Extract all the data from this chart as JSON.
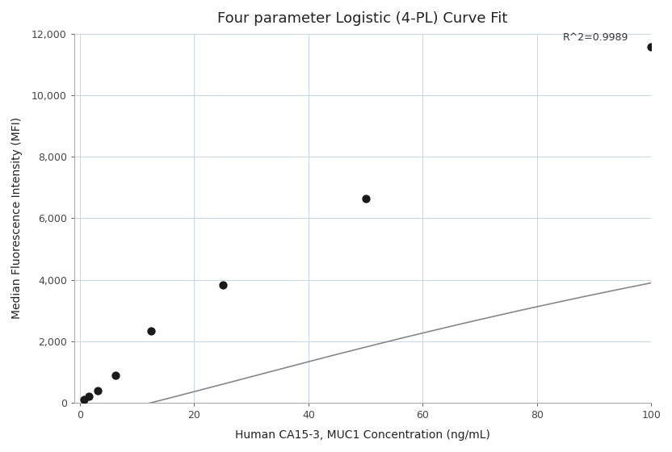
{
  "title": "Four parameter Logistic (4-PL) Curve Fit",
  "xlabel": "Human CA15-3, MUC1 Concentration (ng/mL)",
  "ylabel": "Median Fluorescence Intensity (MFI)",
  "scatter_x": [
    0.78,
    1.56,
    3.125,
    6.25,
    12.5,
    25,
    50,
    100
  ],
  "scatter_y": [
    100,
    200,
    380,
    900,
    2330,
    3820,
    6650,
    11580
  ],
  "r_squared": "R^2=0.9989",
  "xlim": [
    -1,
    100
  ],
  "ylim": [
    0,
    12000
  ],
  "xticks": [
    0,
    20,
    40,
    60,
    80,
    100
  ],
  "yticks": [
    0,
    2000,
    4000,
    6000,
    8000,
    10000,
    12000
  ],
  "scatter_color": "#1a1a1a",
  "line_color": "#888888",
  "background_color": "#ffffff",
  "grid_color": "#c5d5e5",
  "title_fontsize": 13,
  "label_fontsize": 10,
  "tick_fontsize": 9,
  "annotation_fontsize": 9
}
